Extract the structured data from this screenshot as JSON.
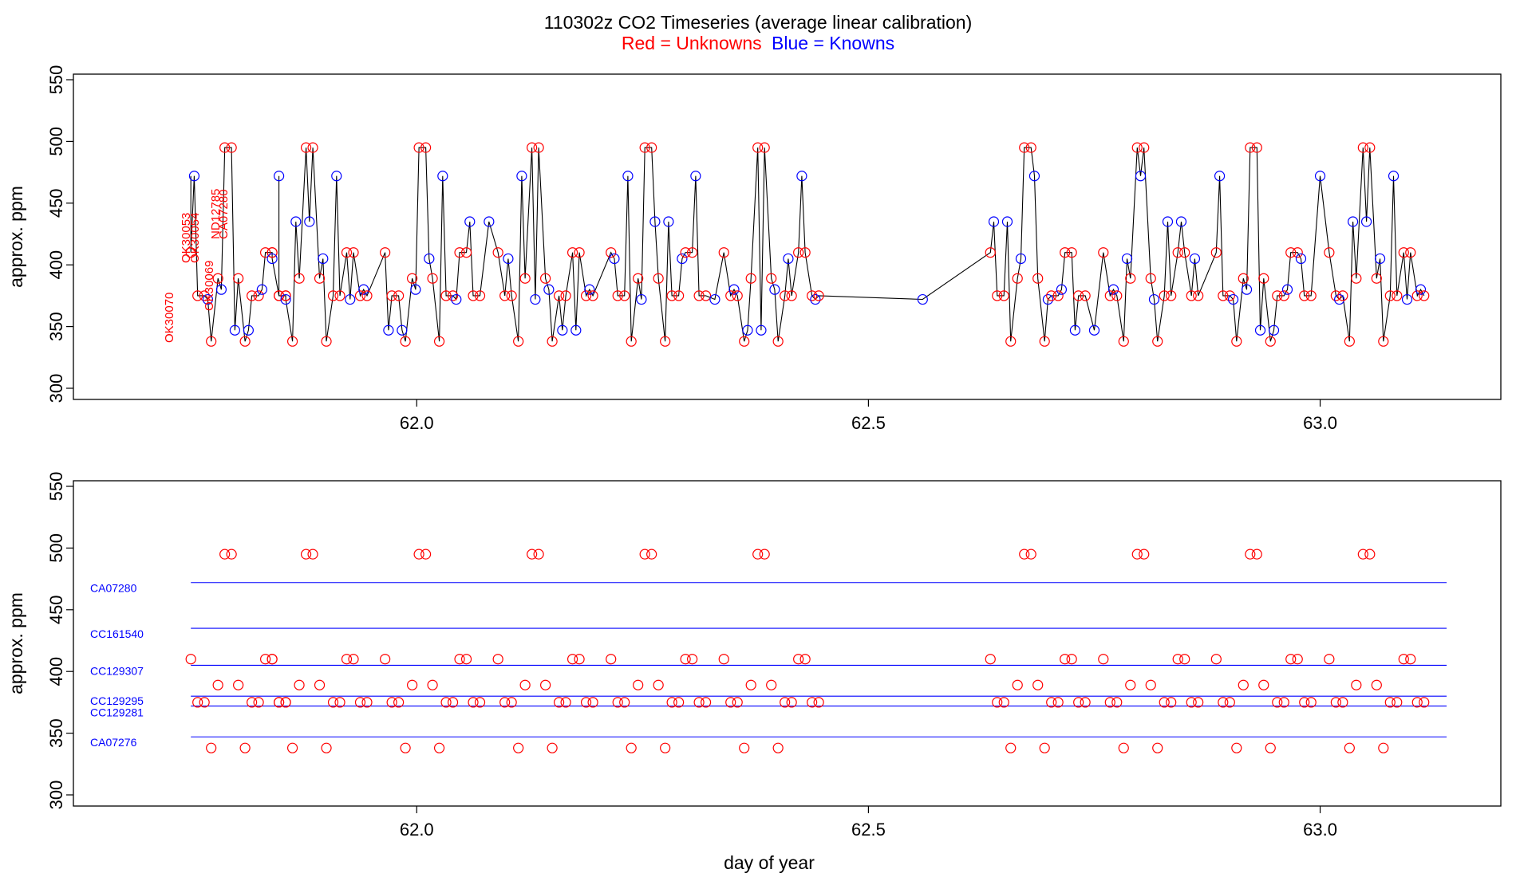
{
  "chart_data": {
    "type": "scatter",
    "title": "110302z   CO2 Timeseries (average linear calibration)",
    "subtitle": {
      "red_text": "Red = Unknowns",
      "blue_text": "Blue = Knowns",
      "red_color": "#ff0000",
      "blue_color": "#0000ff"
    },
    "xlabel": "day of year",
    "ylabel": "approx. ppm",
    "xlim": [
      61.62,
      63.2
    ],
    "ylim": [
      300,
      560
    ],
    "x_ticks": [
      "62.0",
      "62.5",
      "63.0"
    ],
    "y_ticks": [
      "300",
      "350",
      "400",
      "450",
      "500",
      "550"
    ],
    "line_color": "#000000",
    "series": [
      {
        "name": "Red = Unknowns",
        "color": "#ff0000",
        "y_cycle": [
          410,
          375,
          375,
          338,
          389,
          495,
          495,
          389,
          338,
          375,
          375,
          410,
          410,
          375,
          375
        ],
        "cycles": [
          {
            "start": 61.75,
            "step": 0.0075
          },
          {
            "start": 61.84,
            "step": 0.0075
          },
          {
            "start": 61.965,
            "step": 0.0075
          },
          {
            "start": 62.09,
            "step": 0.0075
          },
          {
            "start": 62.215,
            "step": 0.0075
          },
          {
            "start": 62.34,
            "step": 0.0075
          },
          {
            "start": 62.635,
            "step": 0.0075
          },
          {
            "start": 62.76,
            "step": 0.0075
          },
          {
            "start": 62.885,
            "step": 0.0075
          },
          {
            "start": 63.01,
            "step": 0.0075
          }
        ]
      },
      {
        "name": "Blue = Knowns",
        "color": "#0000ff",
        "standards": [
          {
            "name": "CA07280",
            "value": 472
          },
          {
            "name": "CC161540",
            "value": 435
          },
          {
            "name": "CC129307",
            "value": 405
          },
          {
            "name": "CC129295",
            "value": 380
          },
          {
            "name": "CC129281",
            "value": 372
          },
          {
            "name": "CA07276",
            "value": 347
          }
        ]
      }
    ],
    "id_labels": [
      "OK30070",
      "OK30053",
      "OK30054",
      "OK30069",
      "ND12785",
      "CA07280"
    ],
    "panel_top": {
      "grid": false,
      "legend": "none"
    },
    "panel_bottom": {
      "grid": false,
      "legend": "none",
      "std_line_range": [
        61.75,
        63.14
      ]
    }
  }
}
